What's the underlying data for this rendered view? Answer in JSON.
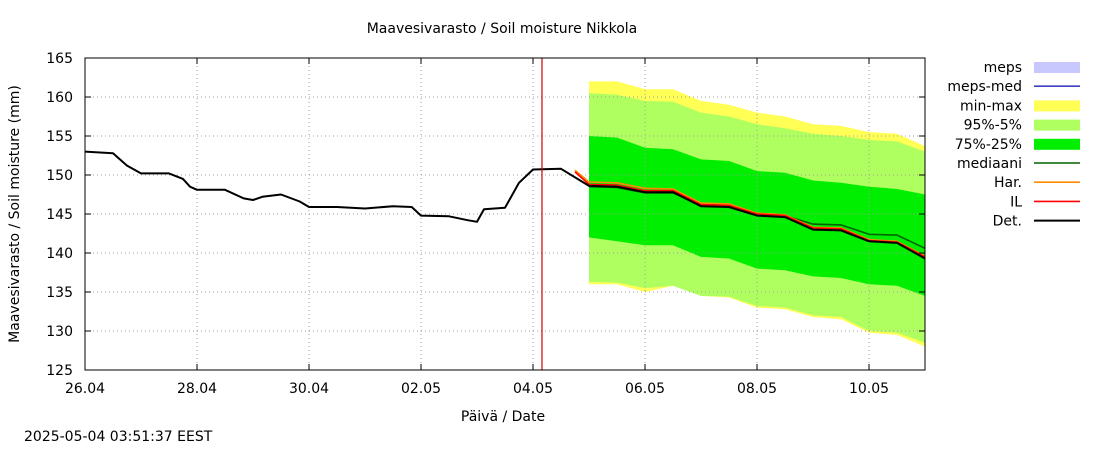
{
  "chart_data": {
    "type": "line",
    "title": "Maavesivarasto / Soil moisture   Nikkola",
    "xlabel": "Päivä / Date",
    "ylabel": "Maavesivarasto / Soil moisture (mm)",
    "ylim": [
      125,
      165
    ],
    "yticks": [
      125,
      130,
      135,
      140,
      145,
      150,
      155,
      160,
      165
    ],
    "xlim": [
      "2025-04-26",
      "2025-05-11"
    ],
    "xticks": [
      {
        "date": "2025-04-26",
        "label": "26.04"
      },
      {
        "date": "2025-04-28",
        "label": "28.04"
      },
      {
        "date": "2025-04-30",
        "label": "30.04"
      },
      {
        "date": "2025-05-02",
        "label": "02.05"
      },
      {
        "date": "2025-05-04",
        "label": "04.05"
      },
      {
        "date": "2025-05-06",
        "label": "06.05"
      },
      {
        "date": "2025-05-08",
        "label": "08.05"
      },
      {
        "date": "2025-05-10",
        "label": "10.05"
      }
    ],
    "grid": true,
    "legend_position": "right",
    "now_marker": "2025-05-04T03:51",
    "legend": [
      {
        "label": "meps",
        "kind": "band",
        "color": "#c8c8ff"
      },
      {
        "label": "meps-med",
        "kind": "line",
        "color": "#4040c0"
      },
      {
        "label": "min-max",
        "kind": "band",
        "color": "#ffff55"
      },
      {
        "label": "95%-5%",
        "kind": "band",
        "color": "#b0ff60"
      },
      {
        "label": "75%-25%",
        "kind": "band",
        "color": "#00ee00"
      },
      {
        "label": "mediaani",
        "kind": "line",
        "color": "#006400"
      },
      {
        "label": "Har.",
        "kind": "line",
        "color": "#ff8c00"
      },
      {
        "label": "IL",
        "kind": "line",
        "color": "#ff0000"
      },
      {
        "label": "Det.",
        "kind": "line",
        "color": "#000000"
      }
    ],
    "series": [
      {
        "name": "Det.",
        "color": "#000000",
        "points": [
          [
            "2025-04-26T00:00",
            153.0
          ],
          [
            "2025-04-26T12:00",
            152.8
          ],
          [
            "2025-04-26T18:00",
            151.2
          ],
          [
            "2025-04-27T00:00",
            150.2
          ],
          [
            "2025-04-27T12:00",
            150.2
          ],
          [
            "2025-04-27T18:00",
            149.5
          ],
          [
            "2025-04-27T21:00",
            148.5
          ],
          [
            "2025-04-28T00:00",
            148.1
          ],
          [
            "2025-04-28T12:00",
            148.1
          ],
          [
            "2025-04-28T20:00",
            147.0
          ],
          [
            "2025-04-29T00:00",
            146.8
          ],
          [
            "2025-04-29T04:00",
            147.2
          ],
          [
            "2025-04-29T12:00",
            147.5
          ],
          [
            "2025-04-29T20:00",
            146.6
          ],
          [
            "2025-04-30T00:00",
            145.9
          ],
          [
            "2025-04-30T12:00",
            145.9
          ],
          [
            "2025-05-01T00:00",
            145.7
          ],
          [
            "2025-05-01T12:00",
            146.0
          ],
          [
            "2025-05-01T20:00",
            145.9
          ],
          [
            "2025-05-02T00:00",
            144.8
          ],
          [
            "2025-05-02T12:00",
            144.7
          ],
          [
            "2025-05-02T20:00",
            144.2
          ],
          [
            "2025-05-03T00:00",
            144.0
          ],
          [
            "2025-05-03T03:00",
            145.6
          ],
          [
            "2025-05-03T12:00",
            145.8
          ],
          [
            "2025-05-03T18:00",
            149.0
          ],
          [
            "2025-05-04T00:00",
            150.7
          ],
          [
            "2025-05-04T12:00",
            150.8
          ],
          [
            "2025-05-05T00:00",
            148.6
          ],
          [
            "2025-05-05T12:00",
            148.5
          ],
          [
            "2025-05-06T00:00",
            147.8
          ],
          [
            "2025-05-06T12:00",
            147.8
          ],
          [
            "2025-05-07T00:00",
            146.0
          ],
          [
            "2025-05-07T12:00",
            145.9
          ],
          [
            "2025-05-08T00:00",
            144.8
          ],
          [
            "2025-05-08T12:00",
            144.6
          ],
          [
            "2025-05-09T00:00",
            143.0
          ],
          [
            "2025-05-09T12:00",
            142.9
          ],
          [
            "2025-05-10T00:00",
            141.5
          ],
          [
            "2025-05-10T12:00",
            141.3
          ],
          [
            "2025-05-11T00:00",
            139.3
          ]
        ]
      },
      {
        "name": "IL",
        "color": "#ff0000",
        "points": [
          [
            "2025-05-04T18:00",
            150.4
          ],
          [
            "2025-05-05T00:00",
            148.8
          ],
          [
            "2025-05-05T12:00",
            148.7
          ],
          [
            "2025-05-06T00:00",
            148.0
          ],
          [
            "2025-05-06T12:00",
            148.0
          ],
          [
            "2025-05-07T00:00",
            146.2
          ],
          [
            "2025-05-07T12:00",
            146.1
          ],
          [
            "2025-05-08T00:00",
            145.0
          ],
          [
            "2025-05-08T12:00",
            144.8
          ],
          [
            "2025-05-09T00:00",
            143.2
          ],
          [
            "2025-05-09T12:00",
            143.1
          ],
          [
            "2025-05-10T00:00",
            141.6
          ],
          [
            "2025-05-10T12:00",
            141.4
          ],
          [
            "2025-05-11T00:00",
            139.5
          ]
        ]
      },
      {
        "name": "Har.",
        "color": "#ff8c00",
        "points": [
          [
            "2025-05-04T18:00",
            150.6
          ],
          [
            "2025-05-05T00:00",
            149.1
          ],
          [
            "2025-05-05T12:00",
            149.0
          ],
          [
            "2025-05-06T00:00",
            148.3
          ],
          [
            "2025-05-06T12:00",
            148.2
          ],
          [
            "2025-05-07T00:00",
            146.4
          ],
          [
            "2025-05-07T12:00",
            146.3
          ],
          [
            "2025-05-08T00:00",
            145.1
          ],
          [
            "2025-05-08T12:00",
            144.9
          ],
          [
            "2025-05-09T00:00",
            143.3
          ],
          [
            "2025-05-09T12:00",
            143.2
          ],
          [
            "2025-05-10T00:00",
            141.7
          ],
          [
            "2025-05-10T12:00",
            141.5
          ],
          [
            "2025-05-11T00:00",
            139.6
          ]
        ]
      },
      {
        "name": "mediaani",
        "color": "#006400",
        "points": [
          [
            "2025-05-05T00:00",
            148.5
          ],
          [
            "2025-05-05T12:00",
            148.4
          ],
          [
            "2025-05-06T00:00",
            147.7
          ],
          [
            "2025-05-06T12:00",
            147.7
          ],
          [
            "2025-05-07T00:00",
            146.2
          ],
          [
            "2025-05-07T12:00",
            146.1
          ],
          [
            "2025-05-08T00:00",
            144.9
          ],
          [
            "2025-05-08T12:00",
            144.8
          ],
          [
            "2025-05-09T00:00",
            143.7
          ],
          [
            "2025-05-09T12:00",
            143.6
          ],
          [
            "2025-05-10T00:00",
            142.4
          ],
          [
            "2025-05-10T12:00",
            142.3
          ],
          [
            "2025-05-11T00:00",
            140.6
          ]
        ]
      }
    ],
    "bands": [
      {
        "name": "min-max",
        "color": "#ffff55",
        "points": [
          [
            "2025-05-05T00:00",
            136.0,
            162.0
          ],
          [
            "2025-05-05T12:00",
            136.0,
            162.0
          ],
          [
            "2025-05-06T00:00",
            135.0,
            161.0
          ],
          [
            "2025-05-06T12:00",
            135.8,
            161.0
          ],
          [
            "2025-05-07T00:00",
            134.5,
            159.5
          ],
          [
            "2025-05-07T12:00",
            134.3,
            159.0
          ],
          [
            "2025-05-08T00:00",
            133.0,
            158.0
          ],
          [
            "2025-05-08T12:00",
            132.8,
            157.5
          ],
          [
            "2025-05-09T00:00",
            131.8,
            156.5
          ],
          [
            "2025-05-09T12:00",
            131.5,
            156.3
          ],
          [
            "2025-05-10T00:00",
            129.8,
            155.5
          ],
          [
            "2025-05-10T12:00",
            129.5,
            155.3
          ],
          [
            "2025-05-11T00:00",
            128.0,
            153.7
          ]
        ]
      },
      {
        "name": "95%-5%",
        "color": "#b0ff60",
        "points": [
          [
            "2025-05-05T00:00",
            136.3,
            160.5
          ],
          [
            "2025-05-05T12:00",
            136.2,
            160.3
          ],
          [
            "2025-05-06T00:00",
            135.5,
            159.5
          ],
          [
            "2025-05-06T12:00",
            135.8,
            159.4
          ],
          [
            "2025-05-07T00:00",
            134.5,
            158.0
          ],
          [
            "2025-05-07T12:00",
            134.4,
            157.5
          ],
          [
            "2025-05-08T00:00",
            133.2,
            156.5
          ],
          [
            "2025-05-08T12:00",
            133.0,
            156.0
          ],
          [
            "2025-05-09T00:00",
            132.0,
            155.3
          ],
          [
            "2025-05-09T12:00",
            131.8,
            155.0
          ],
          [
            "2025-05-10T00:00",
            130.0,
            154.5
          ],
          [
            "2025-05-10T12:00",
            129.8,
            154.3
          ],
          [
            "2025-05-11T00:00",
            128.5,
            153.0
          ]
        ]
      },
      {
        "name": "75%-25%",
        "color": "#00ee00",
        "points": [
          [
            "2025-05-05T00:00",
            142.0,
            155.0
          ],
          [
            "2025-05-05T12:00",
            141.5,
            154.8
          ],
          [
            "2025-05-06T00:00",
            141.0,
            153.5
          ],
          [
            "2025-05-06T12:00",
            141.0,
            153.3
          ],
          [
            "2025-05-07T00:00",
            139.5,
            152.0
          ],
          [
            "2025-05-07T12:00",
            139.3,
            151.8
          ],
          [
            "2025-05-08T00:00",
            138.0,
            150.5
          ],
          [
            "2025-05-08T12:00",
            137.8,
            150.3
          ],
          [
            "2025-05-09T00:00",
            137.0,
            149.3
          ],
          [
            "2025-05-09T12:00",
            136.8,
            149.0
          ],
          [
            "2025-05-10T00:00",
            136.0,
            148.5
          ],
          [
            "2025-05-10T12:00",
            135.8,
            148.2
          ],
          [
            "2025-05-11T00:00",
            134.5,
            147.5
          ]
        ]
      }
    ]
  },
  "footer": {
    "timestamp": "2025-05-04 03:51:37 EEST"
  }
}
